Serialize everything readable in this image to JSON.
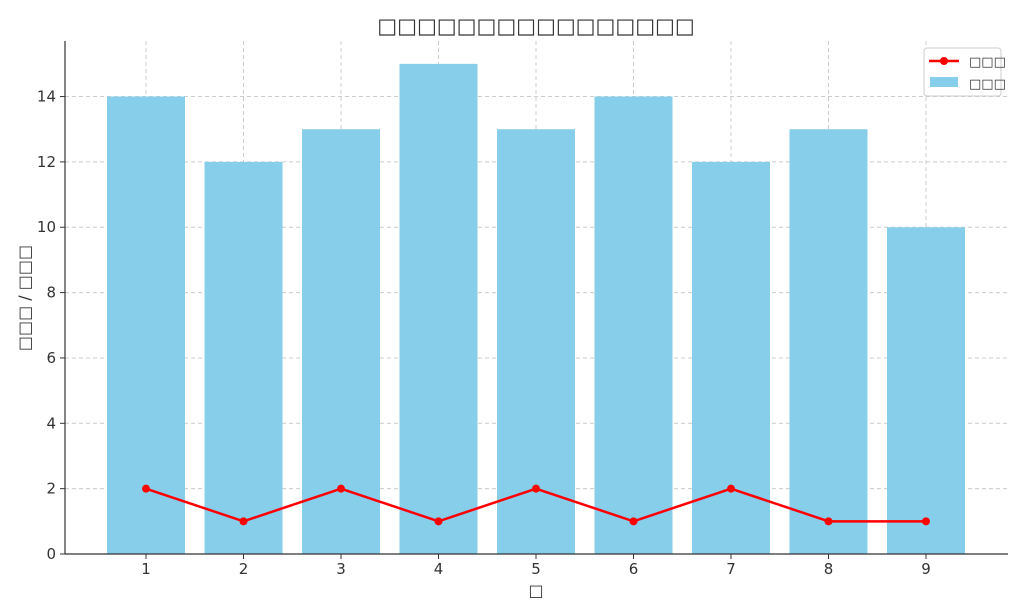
{
  "chart_data": {
    "type": "bar",
    "title": "□□□□□□□□□□□□□□□□",
    "xlabel": "□",
    "ylabel": "□□□ / □□□",
    "categories": [
      "1",
      "2",
      "3",
      "4",
      "5",
      "6",
      "7",
      "8",
      "9"
    ],
    "ylim": [
      0,
      15.7
    ],
    "yticks": [
      0,
      2,
      4,
      6,
      8,
      10,
      12,
      14
    ],
    "grid": true,
    "legend_position": "top-right",
    "series": [
      {
        "name": "□□□",
        "type": "bar",
        "color": "#87ceeb",
        "values": [
          14,
          12,
          13,
          15,
          13,
          14,
          12,
          13,
          10
        ]
      },
      {
        "name": "□□□",
        "type": "line",
        "color": "#ff0000",
        "values": [
          2,
          1,
          2,
          1,
          2,
          1,
          2,
          1,
          1
        ]
      }
    ]
  }
}
